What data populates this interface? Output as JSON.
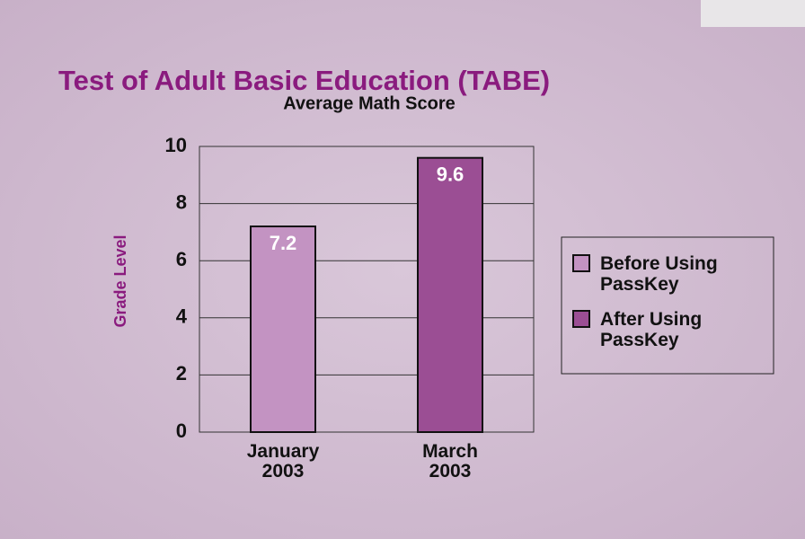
{
  "chart_data": {
    "type": "bar",
    "title": "Test of Adult Basic Education (TABE)",
    "subtitle": "Average Math Score",
    "y_label": "Grade Level",
    "categories": [
      "January 2003",
      "March 2003"
    ],
    "series": [
      {
        "name": "Before Using PassKey",
        "color": "#c393c2",
        "values": [
          7.2,
          null
        ]
      },
      {
        "name": "After Using PassKey",
        "color": "#9b4e94",
        "values": [
          null,
          9.6
        ]
      }
    ],
    "ylim": [
      0,
      10
    ],
    "yticks": [
      0,
      2,
      4,
      6,
      8,
      10
    ],
    "grid": true,
    "legend": "right"
  }
}
